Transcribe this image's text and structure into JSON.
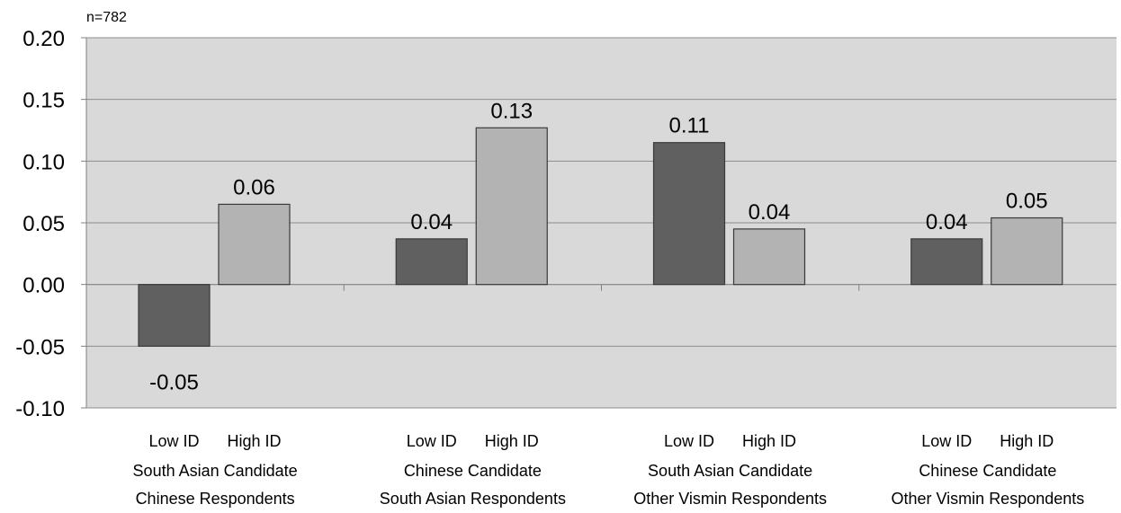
{
  "chart_data": {
    "type": "bar",
    "annotation": "n=782",
    "ylim": [
      -0.1,
      0.2
    ],
    "yticks": [
      "0.20",
      "0.15",
      "0.10",
      "0.05",
      "0.00",
      "-0.05",
      "-0.10"
    ],
    "ytick_values": [
      0.2,
      0.15,
      0.1,
      0.05,
      0.0,
      -0.05,
      -0.1
    ],
    "grid": true,
    "legend": "none",
    "groups": [
      {
        "label_line1": "South Asian Candidate",
        "label_line2": "Chinese Respondents",
        "bars": [
          {
            "category": "Low ID",
            "value": -0.05,
            "label": "-0.05"
          },
          {
            "category": "High ID",
            "value": 0.065,
            "label": "0.06"
          }
        ]
      },
      {
        "label_line1": "Chinese Candidate",
        "label_line2": "South Asian Respondents",
        "bars": [
          {
            "category": "Low ID",
            "value": 0.037,
            "label": "0.04"
          },
          {
            "category": "High ID",
            "value": 0.127,
            "label": "0.13"
          }
        ]
      },
      {
        "label_line1": "South Asian Candidate",
        "label_line2": "Other Vismin Respondents",
        "bars": [
          {
            "category": "Low ID",
            "value": 0.115,
            "label": "0.11"
          },
          {
            "category": "High ID",
            "value": 0.045,
            "label": "0.04"
          }
        ]
      },
      {
        "label_line1": "Chinese Candidate",
        "label_line2": "Other Vismin Respondents",
        "bars": [
          {
            "category": "Low ID",
            "value": 0.037,
            "label": "0.04"
          },
          {
            "category": "High ID",
            "value": 0.054,
            "label": "0.05"
          }
        ]
      }
    ],
    "colors": {
      "low": "#606060",
      "high": "#b3b3b3",
      "plot_bg": "#d9d9d9",
      "grid": "#8c8c8c",
      "bar_edge": "#3a3a3a"
    }
  }
}
